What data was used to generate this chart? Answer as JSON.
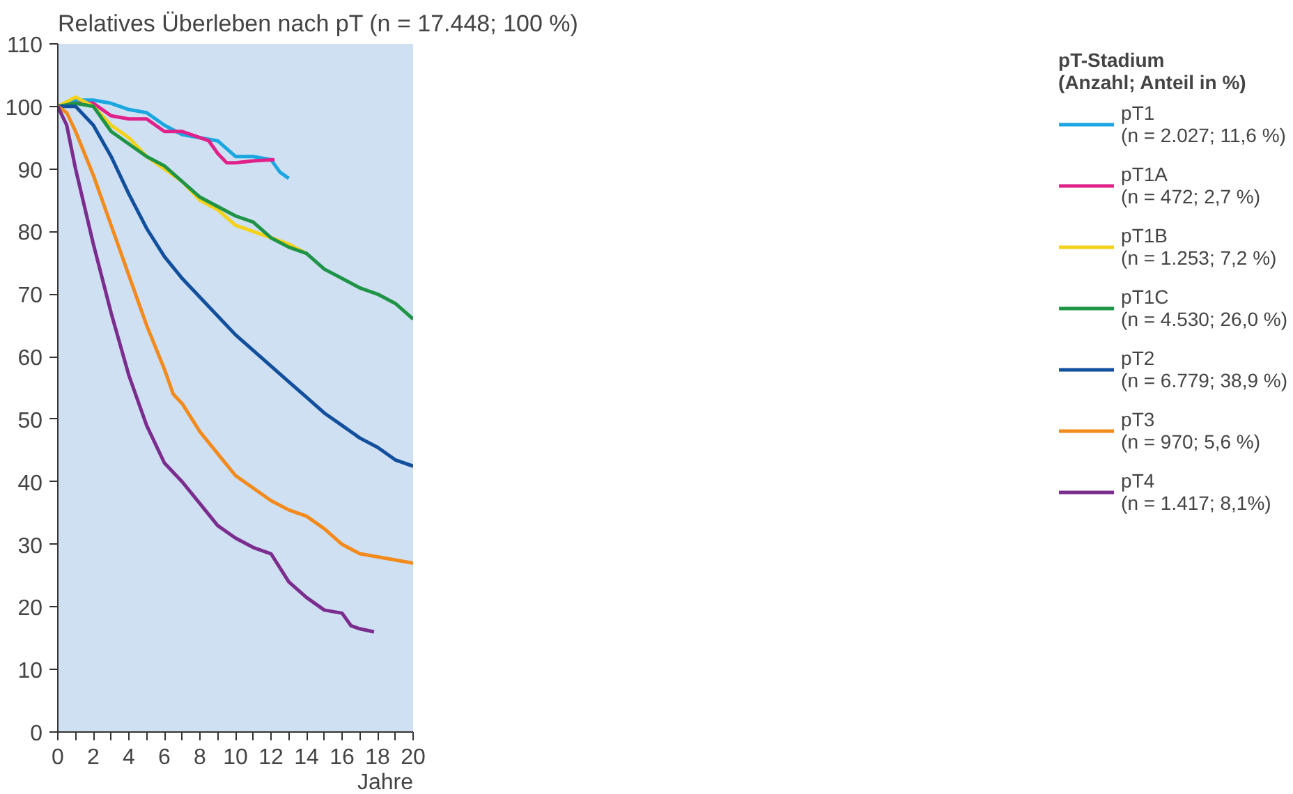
{
  "chart_data": {
    "type": "line",
    "title": "Relatives Überleben nach pT (n = 17.448; 100 %)",
    "xlabel": "Jahre",
    "legend_title": "pT-Stadium\n(Anzahl; Anteil in %)",
    "legend": "right",
    "grid": false,
    "marker": "none",
    "line_style": "solid",
    "xlim": [
      0,
      20
    ],
    "ylim": [
      0,
      110
    ],
    "xticks": [
      0,
      {
        "value": 1,
        "label": null
      },
      2,
      {
        "value": 3,
        "label": null
      },
      4,
      {
        "value": 5,
        "label": null
      },
      6,
      {
        "value": 7,
        "label": null
      },
      8,
      {
        "value": 9,
        "label": null
      },
      10,
      {
        "value": 11,
        "label": null
      },
      12,
      {
        "value": 13,
        "label": null
      },
      14,
      {
        "value": 15,
        "label": null
      },
      16,
      {
        "value": 17,
        "label": null
      },
      18,
      {
        "value": 19,
        "label": null
      },
      20
    ],
    "yticks": [
      0,
      10,
      20,
      30,
      40,
      50,
      60,
      70,
      80,
      90,
      100,
      110
    ],
    "series": [
      {
        "name": "pT1\n(n = 2.027; 11,6 %)",
        "color": "#1aa7e0",
        "x": [
          0,
          1,
          2,
          3,
          4,
          5,
          6,
          7,
          8,
          9,
          10,
          11,
          12,
          12.5,
          13
        ],
        "values": [
          100,
          101,
          101,
          100.5,
          99.5,
          99,
          97,
          95.5,
          95,
          94.5,
          92,
          92,
          91.5,
          89.5,
          88.5
        ]
      },
      {
        "name": "pT1A\n(n = 472; 2,7 %)",
        "color": "#e0218a",
        "x": [
          0,
          1,
          2,
          3,
          4,
          5,
          6,
          7,
          8,
          8.5,
          9,
          9.5,
          10,
          11,
          12.2
        ],
        "values": [
          100,
          100.5,
          100.5,
          98.5,
          98,
          98,
          96,
          96,
          95,
          94.5,
          92.5,
          91,
          91,
          91.3,
          91.5
        ]
      },
      {
        "name": "pT1B\n(n = 1.253; 7,2 %)",
        "color": "#f5d21a",
        "x": [
          0,
          1,
          2,
          3,
          4,
          5,
          6,
          7,
          8,
          9,
          10,
          11,
          12,
          13,
          14
        ],
        "values": [
          100,
          101.5,
          100,
          97,
          95,
          92,
          90,
          88,
          85,
          83.5,
          81,
          80,
          79,
          78,
          76.5
        ]
      },
      {
        "name": "pT1C\n(n = 4.530; 26,0 %)",
        "color": "#1f9447",
        "x": [
          0,
          1,
          2,
          3,
          4,
          5,
          6,
          7,
          8,
          9,
          10,
          11,
          12,
          13,
          14,
          15,
          16,
          17,
          18,
          19,
          20
        ],
        "values": [
          100,
          100.5,
          100,
          96,
          94,
          92,
          90.5,
          88,
          85.5,
          84,
          82.5,
          81.5,
          79,
          77.5,
          76.5,
          74,
          72.5,
          71,
          70,
          68.5,
          66
        ]
      },
      {
        "name": "pT2\n(n = 6.779; 38,9 %)",
        "color": "#124f9c",
        "x": [
          0,
          1,
          2,
          3,
          4,
          5,
          6,
          7,
          8,
          9,
          10,
          11,
          12,
          13,
          14,
          15,
          16,
          17,
          18,
          19,
          20
        ],
        "values": [
          100,
          100,
          97,
          92,
          86,
          80.5,
          76,
          72.5,
          69.5,
          66.5,
          63.5,
          61,
          58.5,
          56,
          53.5,
          51,
          49,
          47,
          45.5,
          43.5,
          42.5
        ]
      },
      {
        "name": "pT3\n(n = 970; 5,6 %)",
        "color": "#f28a1c",
        "x": [
          0,
          0.5,
          1,
          2,
          3,
          4,
          5,
          6,
          6.5,
          7,
          8,
          9,
          10,
          11,
          12,
          13,
          14,
          15,
          16,
          17,
          18,
          19,
          20
        ],
        "values": [
          100,
          99,
          96,
          89,
          81,
          73,
          65,
          58,
          54,
          52.5,
          48,
          44.5,
          41,
          39,
          37,
          35.5,
          34.5,
          32.5,
          30,
          28.5,
          28,
          27.5,
          27
        ]
      },
      {
        "name": "pT4\n(n = 1.417; 8,1%)",
        "color": "#7b2d8e",
        "x": [
          0,
          0.5,
          1,
          2,
          3,
          4,
          5,
          6,
          6.5,
          7,
          8,
          9,
          10,
          11,
          12,
          13,
          14,
          15,
          16,
          16.5,
          17,
          17.8
        ],
        "values": [
          100,
          97,
          90,
          78,
          67,
          57,
          49,
          43,
          41.5,
          40,
          36.5,
          33,
          31,
          29.5,
          28.5,
          24,
          21.5,
          19.5,
          19,
          17,
          16.5,
          16
        ]
      }
    ]
  }
}
